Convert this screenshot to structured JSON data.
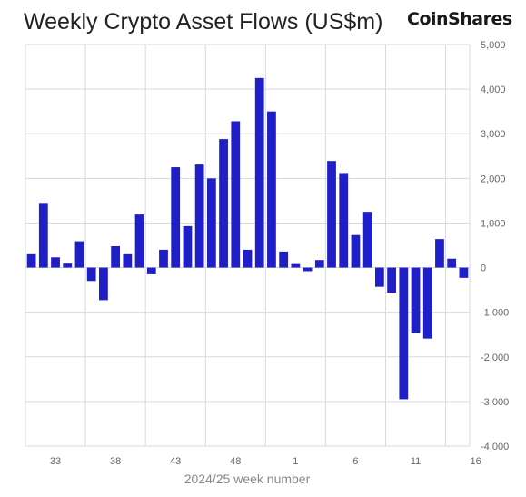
{
  "header": {
    "title": "Weekly Crypto Asset Flows (US$m)",
    "logo_text": "CoinShares"
  },
  "chart_data": {
    "type": "bar",
    "title": "Weekly Crypto Asset Flows (US$m)",
    "xlabel": "2024/25 week number",
    "ylabel": "",
    "ylim": [
      -4000,
      5000
    ],
    "yticks": [
      5000,
      4000,
      3000,
      2000,
      1000,
      0,
      -1000,
      -2000,
      -3000,
      -4000
    ],
    "ytick_labels": [
      "5,000",
      "4,000",
      "3,000",
      "2,000",
      "1,000",
      "0",
      "-1,000",
      "-2,000",
      "-3,000",
      "-4,000"
    ],
    "xtick_labels": [
      "33",
      "38",
      "43",
      "48",
      "1",
      "6",
      "11",
      "16"
    ],
    "categories": [
      "31",
      "32",
      "33",
      "34",
      "35",
      "36",
      "37",
      "38",
      "39",
      "40",
      "41",
      "42",
      "43",
      "44",
      "45",
      "46",
      "47",
      "48",
      "49",
      "50",
      "51",
      "52",
      "1",
      "2",
      "3",
      "4",
      "5",
      "6",
      "7",
      "8",
      "9",
      "10",
      "11",
      "12",
      "13",
      "14",
      "15"
    ],
    "values": [
      300,
      1450,
      230,
      90,
      590,
      -300,
      -730,
      480,
      300,
      1190,
      -150,
      400,
      2250,
      930,
      2310,
      2000,
      2880,
      3280,
      400,
      4250,
      3500,
      360,
      80,
      -80,
      170,
      2390,
      2120,
      730,
      1250,
      -430,
      -560,
      -2950,
      -1470,
      -1590,
      640,
      200,
      -230
    ],
    "grid": true,
    "bar_color": "#1f1fc7"
  }
}
